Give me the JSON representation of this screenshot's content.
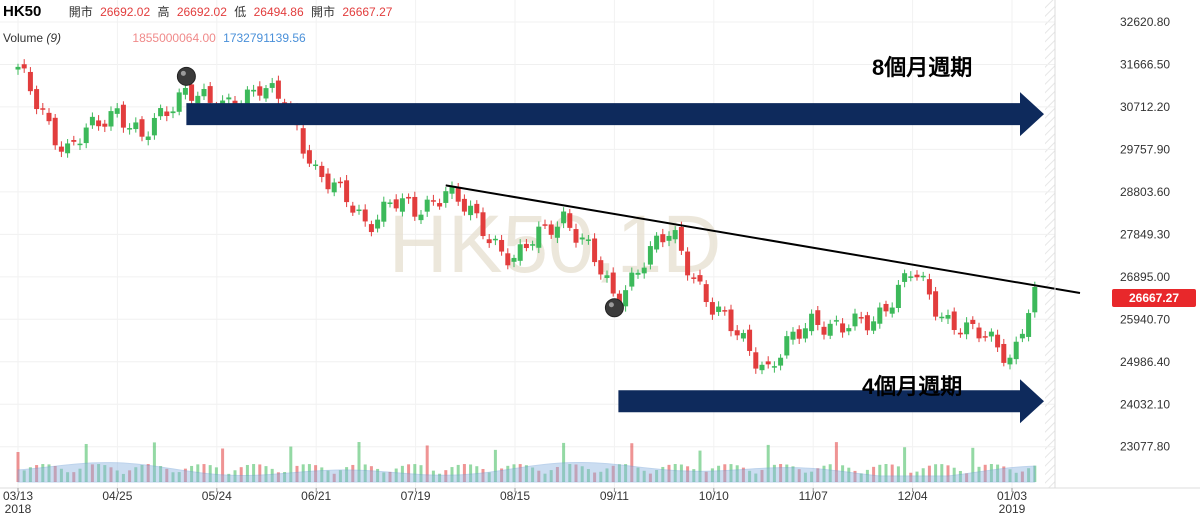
{
  "header": {
    "symbol": "HK50",
    "open_label": "開市",
    "open_value": "26692.02",
    "high_label": "高",
    "high_value": "26692.02",
    "low_label": "低",
    "low_value": "26494.86",
    "close_label": "開市",
    "close_value": "26667.27",
    "volume_label": "Volume",
    "volume_period": "(9)",
    "volume_value_1": "1855000064.00",
    "volume_value_2": "1732791139.56"
  },
  "watermark": "HK50,1D",
  "last_price_tag": "26667.27",
  "annotations": {
    "long_cycle": "8個月週期",
    "short_cycle": "4個月週期"
  },
  "colors": {
    "up": "#3cb95a",
    "down": "#e23d3d",
    "arrow": "#0e2a5c",
    "volume_area": "#8db4e2",
    "price_tag": "#e8282b"
  },
  "chart_data": {
    "type": "candlestick",
    "title": "HK50",
    "timeframe": "1D",
    "y_ticks": [
      32620.8,
      31666.5,
      30712.2,
      29757.9,
      28803.6,
      27849.3,
      26895.0,
      25940.7,
      24986.4,
      24032.1,
      23077.8
    ],
    "ylim": [
      22600,
      32800
    ],
    "x_ticks": [
      "03/13",
      "04/25",
      "05/24",
      "06/21",
      "07/19",
      "08/15",
      "09/11",
      "10/10",
      "11/07",
      "12/04",
      "01/03"
    ],
    "x_tick_years": [
      "2018",
      "",
      "",
      "",
      "",
      "",
      "",
      "",
      "",
      "",
      "2019"
    ],
    "series": [
      {
        "name": "HK50",
        "points": [
          {
            "date": "03/13",
            "value": 31500
          },
          {
            "date": "03/27",
            "value": 30300
          },
          {
            "date": "04/03",
            "value": 29700
          },
          {
            "date": "04/25",
            "value": 30700
          },
          {
            "date": "05/02",
            "value": 29950
          },
          {
            "date": "05/15",
            "value": 31200
          },
          {
            "date": "05/24",
            "value": 30600
          },
          {
            "date": "06/05",
            "value": 31200
          },
          {
            "date": "06/13",
            "value": 30700
          },
          {
            "date": "06/21",
            "value": 29300
          },
          {
            "date": "07/05",
            "value": 28100
          },
          {
            "date": "07/12",
            "value": 28600
          },
          {
            "date": "07/19",
            "value": 28300
          },
          {
            "date": "07/27",
            "value": 28900
          },
          {
            "date": "08/08",
            "value": 27800
          },
          {
            "date": "08/15",
            "value": 27300
          },
          {
            "date": "08/28",
            "value": 28300
          },
          {
            "date": "09/04",
            "value": 27500
          },
          {
            "date": "09/11",
            "value": 26400
          },
          {
            "date": "09/20",
            "value": 27300
          },
          {
            "date": "09/28",
            "value": 27900
          },
          {
            "date": "10/10",
            "value": 26100
          },
          {
            "date": "10/18",
            "value": 25500
          },
          {
            "date": "10/25",
            "value": 24800
          },
          {
            "date": "11/07",
            "value": 26000
          },
          {
            "date": "11/15",
            "value": 25700
          },
          {
            "date": "11/23",
            "value": 25900
          },
          {
            "date": "12/04",
            "value": 27000
          },
          {
            "date": "12/12",
            "value": 26100
          },
          {
            "date": "12/20",
            "value": 25700
          },
          {
            "date": "12/28",
            "value": 25400
          },
          {
            "date": "01/03",
            "value": 25100
          },
          {
            "date": "01/10",
            "value": 26667.27
          }
        ]
      }
    ],
    "resistance_line": {
      "start": {
        "date": "07/27",
        "value": 28950
      },
      "end": {
        "date": "01/10",
        "value": 26700
      }
    },
    "swing_points": [
      {
        "date": "05/15",
        "value": 31400
      },
      {
        "date": "09/11",
        "value": 26200
      }
    ],
    "cycle_arrows": [
      {
        "from_date": "05/15",
        "value": 30550
      },
      {
        "from_date": "09/11",
        "value": 24100
      }
    ]
  }
}
